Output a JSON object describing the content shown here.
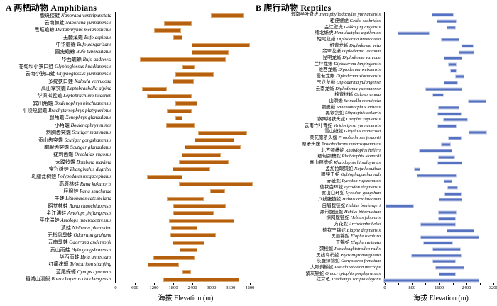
{
  "chart_data": [
    {
      "type": "bar",
      "orientation": "horizontal-range",
      "title": "A 两栖动物 Amphibians",
      "xlabel": "海拔 Elevation (m)",
      "xlim": [
        0,
        4380
      ],
      "xticks": [
        0,
        600,
        1200,
        1800,
        2400,
        3000,
        3600,
        4200
      ],
      "xticks_minor": [],
      "bar_color": "#B4600F",
      "bar_border_color": "#DCA76F",
      "grid": false,
      "legend": "none",
      "species": [
        {
          "cn": "腹斑倭蛙",
          "la": "Nanorana ventripunctata",
          "range": [
            3000,
            4000
          ]
        },
        {
          "cn": "云南棘蛙",
          "la": "Nanorana yunnanensis",
          "range": [
            1550,
            2400
          ]
        },
        {
          "cn": "黑眶蟾蜍",
          "la": "Duttaphrynus melanostictus",
          "range": [
            1250,
            2080
          ]
        },
        {
          "cn": "无棘溪蟾",
          "la": "Bufo aspinius",
          "range": [
            1840,
            2120
          ]
        },
        {
          "cn": "中华蟾蜍",
          "la": "Bufo gargarizans",
          "range": [
            2400,
            4210
          ]
        },
        {
          "cn": "圆疣蟾蜍",
          "la": "Bufo tuberculatus",
          "range": [
            2400,
            3550
          ]
        },
        {
          "cn": "华西蟾蜍",
          "la": "Bufo andrewsi",
          "range": [
            820,
            3450
          ]
        },
        {
          "cn": "花甸坝小狭口蛙",
          "la": "Glyphoglossus huadianensis",
          "range": [
            2120,
            2490
          ]
        },
        {
          "cn": "云南小狭口蛙",
          "la": "Glyphoglossus yunnanensis",
          "range": [
            1910,
            3080
          ]
        },
        {
          "cn": "多疣狭口蛙",
          "la": "Kaloula verrucosa",
          "range": [
            1810,
            2470
          ]
        },
        {
          "cn": "高山掌突蟾",
          "la": "Leptobrachella alpina",
          "range": [
            870,
            1640
          ]
        },
        {
          "cn": "华深拟髭蟾",
          "la": "Leptobrachium huashen",
          "range": [
            1040,
            2410
          ]
        },
        {
          "cn": "宾川角蟾",
          "la": "Boulenophrys binchuanensis",
          "range": [
            1900,
            2580
          ]
        },
        {
          "cn": "平顶短腿蟾",
          "la": "Brachytarsophrys platyparietus",
          "range": [
            1650,
            2420
          ]
        },
        {
          "cn": "腺角蟾",
          "la": "Xenophrys glandulatus",
          "range": [
            1900,
            2120
          ]
        },
        {
          "cn": "小角蟾",
          "la": "Boulenophrys minor",
          "range": [
            1620,
            2500
          ]
        },
        {
          "cn": "刺胸齿突蟾",
          "la": "Scutiger mammatus",
          "range": [
            2600,
            4120
          ]
        },
        {
          "cn": "贡山齿突蟾",
          "la": "Scutiger gongshanensis",
          "range": [
            2490,
            3730
          ]
        },
        {
          "cn": "胸腺齿突蟾",
          "la": "Scutiger glandulatus",
          "range": [
            2200,
            3930
          ]
        },
        {
          "cn": "疣刺齿蟾",
          "la": "Oreolalax rugosus",
          "range": [
            2100,
            3300
          ]
        },
        {
          "cn": "大蹼铃蟾",
          "la": "Bombina maxima",
          "range": [
            2010,
            3540
          ]
        },
        {
          "cn": "宝兴树蛙",
          "la": "Zhangixalus dugritei",
          "range": [
            1810,
            2970
          ]
        },
        {
          "cn": "斑腿泛树蛙",
          "la": "Polypedates megacephalus",
          "range": [
            1030,
            2120
          ]
        },
        {
          "cn": "高原林蛙",
          "la": "Rana kukunoris",
          "range": [
            2010,
            4300
          ]
        },
        {
          "cn": "胫腺蛙",
          "la": "Rana shuchinae",
          "range": [
            2970,
            3440
          ]
        },
        {
          "cn": "牛蛙",
          "la": "Lithobates catesbeiana",
          "range": [
            1640,
            2780
          ]
        },
        {
          "cn": "昭觉林蛙",
          "la": "Rana chaochiaoensis",
          "range": [
            1840,
            3450
          ]
        },
        {
          "cn": "金江湍蛙",
          "la": "Amolops jinjiangensis",
          "range": [
            1840,
            3080
          ]
        },
        {
          "cn": "平疣湍蛙",
          "la": "Amolops tuberodepressus",
          "range": [
            1710,
            3730
          ]
        },
        {
          "cn": "滇蛙",
          "la": "Nidirana pleuraden",
          "range": [
            1770,
            2580
          ]
        },
        {
          "cn": "无指盘臭蛙",
          "la": "Odorrana grahami",
          "range": [
            1750,
            3160
          ]
        },
        {
          "cn": "云南臭蛙",
          "la": "Odorrana andersonii",
          "range": [
            1820,
            2810
          ]
        },
        {
          "cn": "贡山雨蛙",
          "la": "Hyla gongshanensis",
          "range": [
            2030,
            2580
          ]
        },
        {
          "cn": "华西雨蛙",
          "la": "Hyla annectans",
          "range": [
            1230,
            2490
          ]
        },
        {
          "cn": "红瘰疣螈",
          "la": "Tylototriton shanjing",
          "range": [
            1060,
            2010
          ]
        },
        {
          "cn": "蓝尾蝾螈",
          "la": "Cynops cyanurus",
          "range": [
            2120,
            2390
          ]
        },
        {
          "cn": "稻城山溪鲵",
          "la": "Batrachuperus daochengensis",
          "range": [
            1530,
            3880
          ]
        }
      ]
    },
    {
      "type": "bar",
      "orientation": "horizontal-range",
      "title": "B 爬行动物 Reptiles",
      "xlabel": "海拔 Elevation (m)",
      "xlim": [
        0,
        3300
      ],
      "xticks": [
        0,
        800,
        1600,
        2400,
        3200
      ],
      "xticks_minor": [
        400,
        1200,
        2000,
        2800
      ],
      "bar_color": "#5571C1",
      "bar_border_color": "#C6CDE8",
      "grid": false,
      "legend": "none",
      "species": [
        {
          "cn": "云南半叶趾虎",
          "la": "Hemiphyllodactylus yunnanensis",
          "range": [
            1410,
            2050
          ]
        },
        {
          "cn": "粗疣壁虎",
          "la": "Gekko scabridus",
          "range": [
            1550,
            2130
          ]
        },
        {
          "cn": "金江壁虎",
          "la": "Gekko jinjiangensis",
          "range": [
            1850,
            2110
          ]
        },
        {
          "cn": "缅北蜥虎",
          "la": "Hemidactylus aquilonius",
          "range": [
            430,
            1360
          ]
        },
        {
          "cn": "短尾龙蜥",
          "la": "Diploderma brevicauda",
          "range": [
            1680,
            2210
          ]
        },
        {
          "cn": "帆背龙蜥",
          "la": "Diploderma vela",
          "range": [
            2280,
            2630
          ]
        },
        {
          "cn": "翡翠龙蜥",
          "la": "Diploderma iadinum",
          "range": [
            2190,
            2650
          ]
        },
        {
          "cn": "昆明龙蜥",
          "la": "Diploderma varcoae",
          "range": [
            1760,
            2290
          ]
        },
        {
          "cn": "兰坪龙蜥",
          "la": "Diploderma lanpingensis",
          "range": [
            1890,
            2130
          ]
        },
        {
          "cn": "维西龙蜥",
          "la": "Diploderma weixiensis",
          "range": [
            1950,
            2140
          ]
        },
        {
          "cn": "霞若龙蜥",
          "la": "Diploderma xiaruoensis",
          "range": [
            2090,
            2350
          ]
        },
        {
          "cn": "玉龙龙蜥",
          "la": "Diploderma yulongense",
          "range": [
            1760,
            2180
          ]
        },
        {
          "cn": "云南龙蜥",
          "la": "Diploderma yunnanense",
          "range": [
            1240,
            2290
          ]
        },
        {
          "cn": "棕背树蜥",
          "la": "Calotes emma",
          "range": [
            1430,
            1770
          ]
        },
        {
          "cn": "山滑蜥",
          "la": "Scincella monticola",
          "range": [
            2450,
            2990
          ]
        },
        {
          "cn": "铜蜓蜥",
          "la": "Sphenomorphus indicus",
          "range": [
            1590,
            2210
          ]
        },
        {
          "cn": "黑领剑蛇",
          "la": "Sibynophis collaris",
          "range": [
            1580,
            2280
          ]
        },
        {
          "cn": "察隅烙铁头蛇",
          "la": "Ovophis zayuensis",
          "range": [
            1750,
            2450
          ]
        },
        {
          "cn": "云南竹叶青蛇",
          "la": "Viridovipera yunnanensis",
          "range": [
            1580,
            2130
          ]
        },
        {
          "cn": "雪山蝮蛇",
          "la": "Gloydius monticola",
          "range": [
            2480,
            3010
          ]
        },
        {
          "cn": "菜花原矛头蝮",
          "la": "Protobothrops jerdonii",
          "range": [
            1880,
            2270
          ]
        },
        {
          "cn": "原矛头蝮",
          "la": "Protobothrops mucrosquamatus",
          "range": [
            1690,
            1970
          ]
        },
        {
          "cn": "北方颈槽蛇",
          "la": "Rhabdophis helleri",
          "range": [
            1040,
            2010
          ]
        },
        {
          "cn": "缅甸颈槽蛇",
          "la": "Rhabdophis leonardi",
          "range": [
            1590,
            2090
          ]
        },
        {
          "cn": "喜山颈槽蛇",
          "la": "Rhabdophis himalayanus",
          "range": [
            1580,
            2290
          ]
        },
        {
          "cn": "孟加拉眼镜蛇",
          "la": "Naja kaouthia",
          "range": [
            910,
            1080
          ]
        },
        {
          "cn": "眼镜王蛇",
          "la": "Ophiophagus hannah",
          "range": [
            990,
            2130
          ]
        },
        {
          "cn": "赤链蛇",
          "la": "Lycodon rufozonatus",
          "range": [
            1770,
            2010
          ]
        },
        {
          "cn": "德钦白环蛇",
          "la": "Lycodon deqinensis",
          "range": [
            1860,
            2180
          ]
        },
        {
          "cn": "贡山白环蛇",
          "la": "Lycodon gongshan",
          "range": [
            1790,
            2270
          ]
        },
        {
          "cn": "八线腹链蛇",
          "la": "Hebius octolineatum",
          "range": [
            1610,
            2290
          ]
        },
        {
          "cn": "白眉腹链蛇",
          "la": "Hebius boulengeri",
          "range": [
            80,
            910
          ]
        },
        {
          "cn": "黑带腹链蛇",
          "la": "Hebius bitaeniatum",
          "range": [
            1590,
            2130
          ]
        },
        {
          "cn": "棕网腹链蛇",
          "la": "Hebius johannis",
          "range": [
            1590,
            2110
          ]
        },
        {
          "cn": "方花蛇",
          "la": "Archelaphe bella",
          "range": [
            1080,
            2110
          ]
        },
        {
          "cn": "德钦王锦蛇",
          "la": "Elaphe deqinensis",
          "range": [
            1850,
            2650
          ]
        },
        {
          "cn": "黑眉锦蛇",
          "la": "Elaphe taeniura",
          "range": [
            1080,
            2790
          ]
        },
        {
          "cn": "王锦蛇",
          "la": "Elaphe carinata",
          "range": [
            1160,
            2030
          ]
        },
        {
          "cn": "颈棱蛇",
          "la": "Pseudoagkistrodon rudis",
          "range": [
            1440,
            2260
          ]
        },
        {
          "cn": "黑线乌梢蛇",
          "la": "Ptyas nigromarginata",
          "range": [
            830,
            2280
          ]
        },
        {
          "cn": "灰腹绿锦蛇",
          "la": "Gonyosoma frenatum",
          "range": [
            1440,
            2110
          ]
        },
        {
          "cn": "大眼斜鳞蛇",
          "la": "Pseudoxenodon macrops",
          "range": [
            1510,
            2360
          ]
        },
        {
          "cn": "紫灰锦蛇",
          "la": "Oreocryptophis porphyraceus",
          "range": [
            1610,
            2110
          ]
        },
        {
          "cn": "红耳龟",
          "la": "Trachemys scripta elegans",
          "range": [
            30,
            2790
          ]
        }
      ]
    }
  ]
}
